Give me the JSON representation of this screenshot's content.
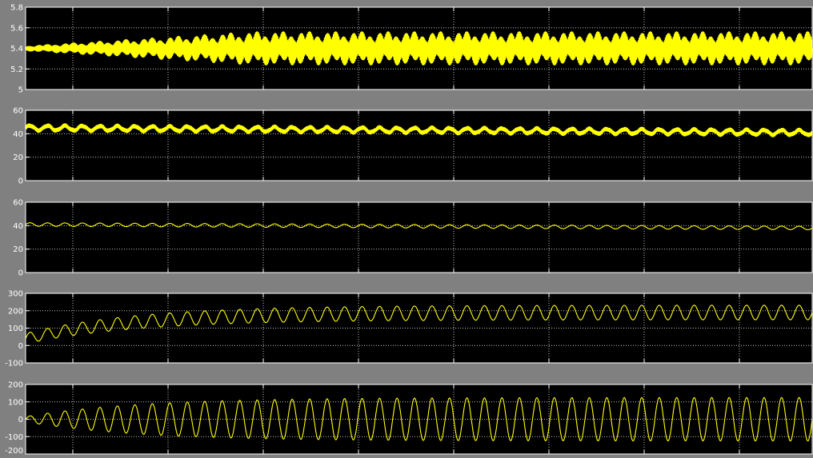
{
  "window": {
    "background": "#808080"
  },
  "chart_data": [
    {
      "type": "line",
      "title": "",
      "xlabel": "",
      "ylabel": "",
      "ylim": [
        5,
        5.8
      ],
      "yticks": [
        "5",
        "5.2",
        "5.4",
        "5.6",
        "5.8"
      ],
      "grid": true,
      "axes_color": "#000000",
      "series": [
        {
          "color": "#ffff00",
          "mean": 5.4,
          "envelope_start": 0.02,
          "envelope_end": 0.16,
          "cycles": 90,
          "style": "dense-oscillation"
        }
      ]
    },
    {
      "type": "line",
      "title": "",
      "xlabel": "",
      "ylabel": "",
      "ylim": [
        0,
        60
      ],
      "yticks": [
        "0",
        "20",
        "40",
        "60"
      ],
      "grid": true,
      "axes_color": "#000000",
      "series": [
        {
          "color": "#ffff00",
          "mean_start": 45,
          "mean_end": 41,
          "ripple": 2,
          "cycles": 45,
          "style": "thick-ripple"
        }
      ]
    },
    {
      "type": "line",
      "title": "",
      "xlabel": "",
      "ylabel": "",
      "ylim": [
        0,
        60
      ],
      "yticks": [
        "0",
        "20",
        "40",
        "60"
      ],
      "grid": true,
      "axes_color": "#000000",
      "series": [
        {
          "color": "#ffff00",
          "mean_start": 41,
          "mean_end": 38,
          "amplitude": 1.5,
          "cycles": 45,
          "style": "thin-sine"
        }
      ]
    },
    {
      "type": "line",
      "title": "",
      "xlabel": "",
      "ylabel": "",
      "ylim": [
        -100,
        300
      ],
      "yticks": [
        "-100",
        "0",
        "100",
        "200",
        "300"
      ],
      "grid": true,
      "axes_color": "#000000",
      "series": [
        {
          "color": "#ffff00",
          "offset_start": 40,
          "offset_end": 190,
          "amplitude_start": 30,
          "amplitude_end": 42,
          "cycles": 45,
          "style": "rising-sine"
        }
      ]
    },
    {
      "type": "line",
      "title": "",
      "xlabel": "",
      "ylabel": "",
      "ylim": [
        -200,
        200
      ],
      "yticks": [
        "-200",
        "-100",
        "0",
        "100",
        "200"
      ],
      "grid": true,
      "axes_color": "#000000",
      "series": [
        {
          "color": "#ffff00",
          "mean": 0,
          "amplitude_start": 15,
          "amplitude_end": 125,
          "cycles": 45,
          "style": "growing-sine"
        }
      ]
    }
  ]
}
